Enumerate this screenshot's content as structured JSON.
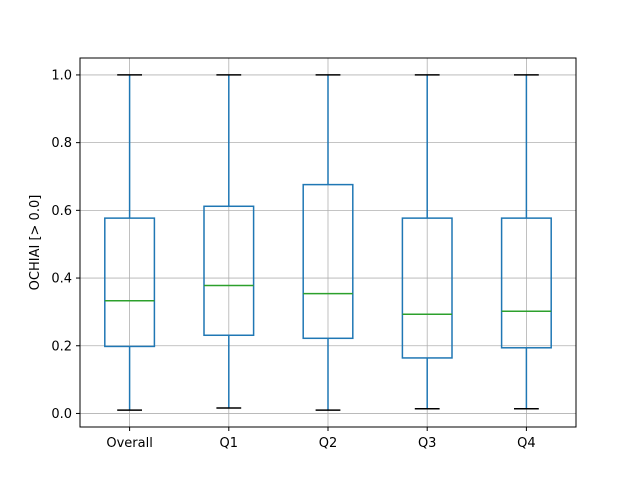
{
  "chart_data": {
    "type": "box",
    "title": "",
    "xlabel": "",
    "ylabel": "OCHIAI [> 0.0]",
    "ylim": [
      -0.04,
      1.05
    ],
    "yticks": [
      0.0,
      0.2,
      0.4,
      0.6,
      0.8,
      1.0
    ],
    "ytick_labels": [
      "0.0",
      "0.2",
      "0.4",
      "0.6",
      "0.8",
      "1.0"
    ],
    "grid": true,
    "categories": [
      "Overall",
      "Q1",
      "Q2",
      "Q3",
      "Q4"
    ],
    "boxes": [
      {
        "category": "Overall",
        "whisker_low": 0.01,
        "q1": 0.198,
        "median": 0.333,
        "q3": 0.577,
        "whisker_high": 1.0
      },
      {
        "category": "Q1",
        "whisker_low": 0.016,
        "q1": 0.231,
        "median": 0.378,
        "q3": 0.612,
        "whisker_high": 1.0
      },
      {
        "category": "Q2",
        "whisker_low": 0.01,
        "q1": 0.222,
        "median": 0.354,
        "q3": 0.676,
        "whisker_high": 1.0
      },
      {
        "category": "Q3",
        "whisker_low": 0.014,
        "q1": 0.164,
        "median": 0.293,
        "q3": 0.577,
        "whisker_high": 1.0
      },
      {
        "category": "Q4",
        "whisker_low": 0.014,
        "q1": 0.194,
        "median": 0.302,
        "q3": 0.577,
        "whisker_high": 1.0
      }
    ],
    "colors": {
      "box": "#1f77b4",
      "median": "#2ca02c",
      "grid": "#b0b0b0",
      "axes": "#000000"
    }
  }
}
